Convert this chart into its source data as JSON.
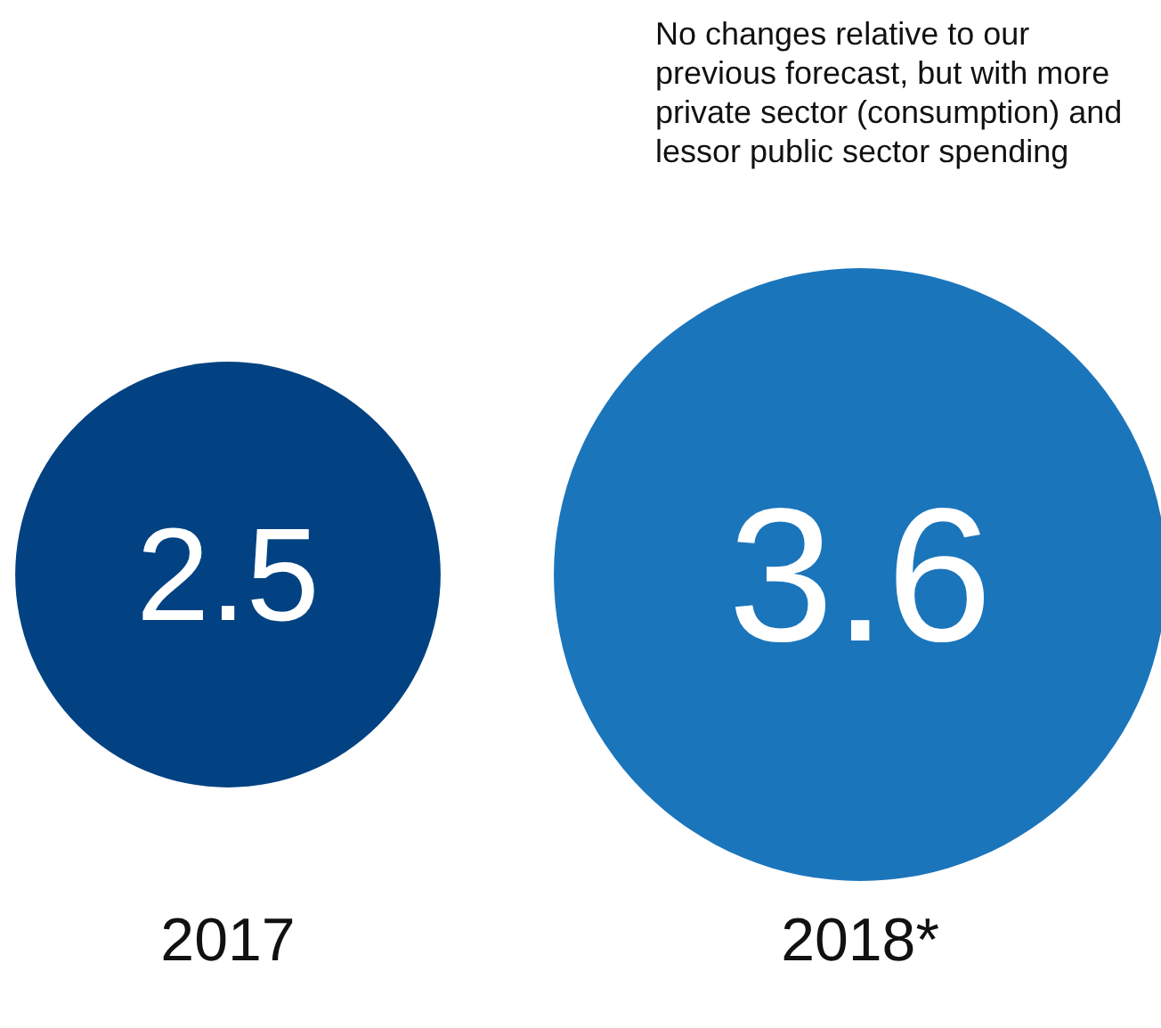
{
  "chart_data": {
    "type": "other",
    "categories": [
      "2017",
      "2018*"
    ],
    "values": [
      2.5,
      3.6
    ],
    "colors": [
      "#024282",
      "#1b75bb"
    ],
    "data_labels": true,
    "annotations": [
      "No changes relative to our previous forecast, but with more private sector (consumption) and lessor public sector spending"
    ]
  }
}
